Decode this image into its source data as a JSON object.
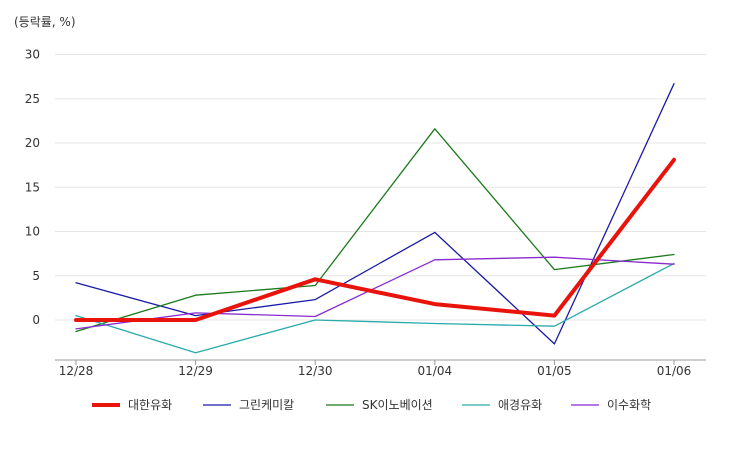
{
  "chart_data": {
    "type": "line",
    "unit_label": "(등락률, %)",
    "categories": [
      "12/28",
      "12/29",
      "12/30",
      "01/04",
      "01/05",
      "01/06"
    ],
    "ylim": [
      -4,
      30
    ],
    "yticks": [
      0,
      5,
      10,
      15,
      20,
      25,
      30
    ],
    "grid": true,
    "legend_position": "bottom",
    "series": [
      {
        "name": "대한유화",
        "color": "#e8140c",
        "emphasis": true,
        "values": [
          0.0,
          0.0,
          4.6,
          1.8,
          0.5,
          18.1
        ]
      },
      {
        "name": "그린케미칼",
        "color": "#1a1aa8",
        "emphasis": false,
        "values": [
          4.2,
          0.5,
          2.3,
          9.9,
          -2.7,
          26.7
        ]
      },
      {
        "name": "SK이노베이션",
        "color": "#1a7a1a",
        "emphasis": false,
        "values": [
          -1.3,
          2.8,
          3.9,
          21.6,
          5.7,
          7.4
        ]
      },
      {
        "name": "애경유화",
        "color": "#2aaaaa",
        "emphasis": false,
        "values": [
          0.5,
          -3.7,
          0.0,
          -0.4,
          -0.7,
          6.4
        ]
      },
      {
        "name": "이수화학",
        "color": "#8a2ad0",
        "emphasis": false,
        "values": [
          -1.0,
          0.8,
          0.4,
          6.8,
          7.1,
          6.3
        ]
      }
    ]
  }
}
